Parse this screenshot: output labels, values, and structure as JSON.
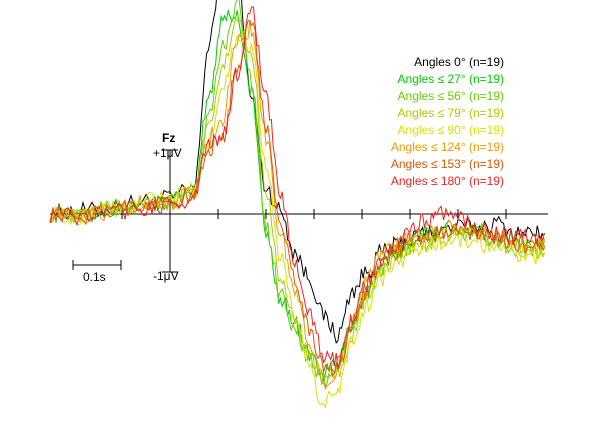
{
  "chart_data": {
    "type": "line",
    "channel_label": "Fz",
    "y_scale_top_label": "+1μV",
    "y_scale_bottom_label": "-1μV",
    "x_scale_label": "0.1s",
    "x_scale_bar_seconds": 0.1,
    "x_tick_interval_s": 0.1,
    "xlim": [
      -0.25,
      0.78
    ],
    "ylim": [
      -3.2,
      4.2
    ],
    "grid": false,
    "legend_position": "top-right",
    "x": [
      -0.25,
      -0.2,
      -0.15,
      -0.1,
      -0.05,
      0.0,
      0.05,
      0.08,
      0.11,
      0.14,
      0.17,
      0.2,
      0.23,
      0.26,
      0.29,
      0.32,
      0.35,
      0.38,
      0.41,
      0.44,
      0.47,
      0.5,
      0.53,
      0.56,
      0.6,
      0.64,
      0.68,
      0.72,
      0.76,
      0.78
    ],
    "series": [
      {
        "name": "Angles 0° (n=19)",
        "color": "#000000",
        "values": [
          0.0,
          0.05,
          0.05,
          0.15,
          0.2,
          0.25,
          0.4,
          2.6,
          3.9,
          3.8,
          1.8,
          0.4,
          0.05,
          -0.6,
          -1.0,
          -1.6,
          -1.9,
          -1.2,
          -0.9,
          -0.6,
          -0.5,
          -0.4,
          -0.3,
          -0.25,
          -0.2,
          -0.2,
          -0.15,
          -0.3,
          -0.3,
          -0.3
        ]
      },
      {
        "name": "Angles ≤ 27° (n=19)",
        "color": "#00cc00",
        "values": [
          0.0,
          0.05,
          0.05,
          0.1,
          0.15,
          0.2,
          0.3,
          1.8,
          3.1,
          3.1,
          1.9,
          -0.3,
          -1.3,
          -1.7,
          -2.2,
          -2.5,
          -2.3,
          -1.7,
          -1.2,
          -0.8,
          -0.6,
          -0.4,
          -0.3,
          -0.25,
          -0.2,
          -0.25,
          -0.4,
          -0.4,
          -0.5,
          -0.5
        ]
      },
      {
        "name": "Angles ≤ 56° (n=19)",
        "color": "#66cc00",
        "values": [
          0.0,
          0.0,
          0.05,
          0.1,
          0.15,
          0.2,
          0.3,
          1.5,
          2.6,
          3.3,
          2.1,
          -0.2,
          -1.2,
          -1.8,
          -2.3,
          -2.6,
          -2.4,
          -1.8,
          -1.2,
          -0.9,
          -0.7,
          -0.5,
          -0.4,
          -0.35,
          -0.3,
          -0.3,
          -0.45,
          -0.5,
          -0.55,
          -0.55
        ]
      },
      {
        "name": "Angles ≤ 79° (n=19)",
        "color": "#aacc00",
        "values": [
          0.0,
          -0.05,
          0.05,
          0.1,
          0.15,
          0.2,
          0.3,
          1.3,
          2.3,
          3.0,
          2.5,
          0.4,
          -1.0,
          -1.7,
          -2.2,
          -2.6,
          -2.5,
          -1.9,
          -1.3,
          -0.9,
          -0.7,
          -0.5,
          -0.45,
          -0.4,
          -0.35,
          -0.35,
          -0.45,
          -0.55,
          -0.6,
          -0.6
        ]
      },
      {
        "name": "Angles ≤ 90° (n=19)",
        "color": "#dddd00",
        "values": [
          0.0,
          -0.05,
          0.05,
          0.1,
          0.2,
          0.25,
          0.35,
          1.1,
          2.0,
          2.8,
          2.6,
          0.8,
          -0.7,
          -1.6,
          -2.4,
          -3.0,
          -2.7,
          -2.0,
          -1.4,
          -1.0,
          -0.8,
          -0.6,
          -0.5,
          -0.45,
          -0.4,
          -0.45,
          -0.55,
          -0.6,
          -0.65,
          -0.65
        ]
      },
      {
        "name": "Angles ≤ 124° (n=19)",
        "color": "#ee9900",
        "values": [
          0.0,
          -0.05,
          0.0,
          0.1,
          0.2,
          0.2,
          0.3,
          1.2,
          1.5,
          2.7,
          2.9,
          1.2,
          -0.3,
          -1.2,
          -2.0,
          -2.6,
          -2.5,
          -1.6,
          -1.0,
          -0.6,
          -0.5,
          -0.35,
          -0.3,
          -0.25,
          -0.2,
          -0.25,
          -0.35,
          -0.4,
          -0.45,
          -0.45
        ]
      },
      {
        "name": "Angles ≤ 153° (n=19)",
        "color": "#dd5500",
        "values": [
          0.0,
          -0.05,
          0.0,
          0.1,
          0.15,
          0.2,
          0.3,
          1.0,
          1.2,
          2.3,
          3.0,
          1.4,
          -0.1,
          -1.0,
          -1.8,
          -2.4,
          -2.4,
          -1.7,
          -1.2,
          -0.8,
          -0.6,
          -0.4,
          -0.35,
          -0.3,
          -0.25,
          -0.3,
          -0.4,
          -0.45,
          -0.5,
          -0.5
        ]
      },
      {
        "name": "Angles ≤ 180° (n=19)",
        "color": "#ee2222",
        "values": [
          0.0,
          -0.05,
          0.0,
          0.05,
          0.1,
          0.15,
          0.25,
          1.1,
          1.2,
          2.2,
          3.2,
          1.8,
          0.3,
          -0.7,
          -1.6,
          -2.2,
          -2.3,
          -1.6,
          -1.1,
          -0.7,
          -0.5,
          -0.3,
          -0.1,
          0.05,
          -0.1,
          -0.2,
          -0.3,
          -0.35,
          -0.4,
          -0.4
        ]
      }
    ]
  }
}
